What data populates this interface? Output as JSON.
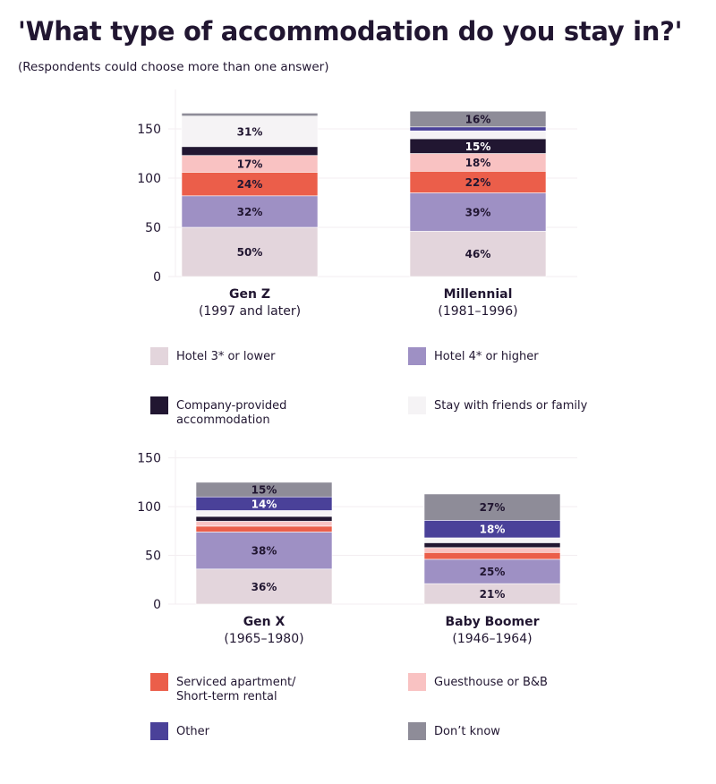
{
  "title": "'What type of accommodation do you stay in?'",
  "subtitle": "(Respondents could choose more than one answer)",
  "chart_data": [
    {
      "type": "bar",
      "stacked": true,
      "yticks": [
        0,
        50,
        100,
        150
      ],
      "ylim": [
        0,
        175
      ],
      "grid": true,
      "categories": [
        {
          "name": "Gen Z",
          "sub": "(1997 and later)"
        },
        {
          "name": "Millennial",
          "sub": "(1981–1996)"
        }
      ],
      "series": [
        {
          "name": "Hotel 3* or lower",
          "color": "#e3d5dc",
          "values": [
            50,
            46
          ],
          "labels": [
            "50%",
            "46%"
          ]
        },
        {
          "name": "Hotel 4* or higher",
          "color": "#9e90c4",
          "values": [
            32,
            39
          ],
          "labels": [
            "32%",
            "39%"
          ]
        },
        {
          "name": "Serviced apartment/ Short-term rental",
          "color": "#eb5e4a",
          "values": [
            24,
            22
          ],
          "labels": [
            "24%",
            "22%"
          ]
        },
        {
          "name": "Guesthouse or B&B",
          "color": "#f9c2c2",
          "values": [
            17,
            18
          ],
          "labels": [
            "17%",
            "18%"
          ]
        },
        {
          "name": "Company-provided accommodation",
          "color": "#211631",
          "values": [
            9,
            15
          ],
          "labels": [
            null,
            "15%"
          ]
        },
        {
          "name": "Stay with friends or family",
          "color": "#f5f3f5",
          "values": [
            31,
            8
          ],
          "labels": [
            "31%",
            null
          ]
        },
        {
          "name": "Other",
          "color": "#4a4199",
          "values": [
            0,
            4
          ],
          "labels": [
            null,
            null
          ]
        },
        {
          "name": "Don't know",
          "color": "#8e8c98",
          "values": [
            3,
            16
          ],
          "labels": [
            null,
            "16%"
          ]
        }
      ]
    },
    {
      "type": "bar",
      "stacked": true,
      "yticks": [
        0,
        50,
        100,
        150
      ],
      "ylim": [
        0,
        155
      ],
      "grid": true,
      "categories": [
        {
          "name": "Gen X",
          "sub": "(1965–1980)"
        },
        {
          "name": "Baby Boomer",
          "sub": "(1946–1964)"
        }
      ],
      "series": [
        {
          "name": "Hotel 3* or lower",
          "color": "#e3d5dc",
          "values": [
            36,
            21
          ],
          "labels": [
            "36%",
            "21%"
          ]
        },
        {
          "name": "Hotel 4* or higher",
          "color": "#9e90c4",
          "values": [
            38,
            25
          ],
          "labels": [
            "38%",
            "25%"
          ]
        },
        {
          "name": "Serviced apartment/ Short-term rental",
          "color": "#eb5e4a",
          "values": [
            6,
            7
          ],
          "labels": [
            null,
            null
          ]
        },
        {
          "name": "Guesthouse or B&B",
          "color": "#f9c2c2",
          "values": [
            5,
            5
          ],
          "labels": [
            null,
            null
          ]
        },
        {
          "name": "Company-provided accommodation",
          "color": "#211631",
          "values": [
            5,
            5
          ],
          "labels": [
            null,
            null
          ]
        },
        {
          "name": "Stay with friends or family",
          "color": "#f5f3f5",
          "values": [
            6,
            5
          ],
          "labels": [
            null,
            null
          ]
        },
        {
          "name": "Other",
          "color": "#4a4199",
          "values": [
            14,
            18
          ],
          "labels": [
            "14%",
            "18%"
          ]
        },
        {
          "name": "Don't know",
          "color": "#8e8c98",
          "values": [
            15,
            27
          ],
          "labels": [
            "15%",
            "27%"
          ]
        }
      ]
    }
  ],
  "legend1": [
    {
      "label": "Hotel 3* or lower",
      "color": "#e3d5dc"
    },
    {
      "label": "Hotel 4* or higher",
      "color": "#9e90c4"
    },
    {
      "label": "Company-provided accommodation",
      "color": "#211631"
    },
    {
      "label": "Stay with friends or family",
      "color": "#f5f3f5"
    }
  ],
  "legend2": [
    {
      "label": "Serviced apartment/ Short-term rental",
      "color": "#eb5e4a"
    },
    {
      "label": "Guesthouse or B&B",
      "color": "#f9c2c2"
    },
    {
      "label": "Other",
      "color": "#4a4199"
    },
    {
      "label": "Don’t know",
      "color": "#8e8c98"
    }
  ]
}
